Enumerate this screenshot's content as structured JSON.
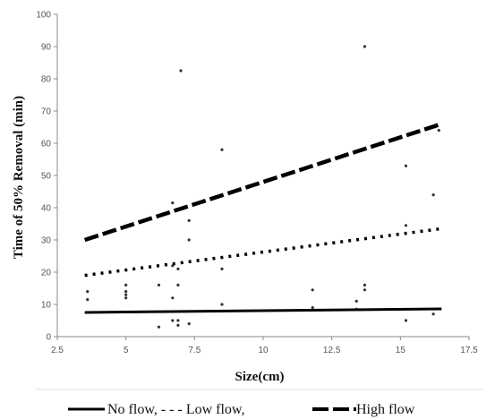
{
  "chart_data": {
    "type": "scatter",
    "xlabel": "Size(cm)",
    "ylabel": "Time of 50% Removal (min)",
    "xlim": [
      2.5,
      17.5
    ],
    "ylim": [
      0,
      100
    ],
    "xticks": [
      "2.5",
      "5",
      "7.5",
      "10",
      "12.5",
      "15",
      "17.5"
    ],
    "yticks": [
      "0",
      "10",
      "20",
      "30",
      "40",
      "50",
      "60",
      "70",
      "80",
      "90",
      "100"
    ],
    "grid": false,
    "legend_position": "bottom",
    "points": [
      {
        "x": 3.6,
        "y": 14
      },
      {
        "x": 3.6,
        "y": 11.5
      },
      {
        "x": 5.0,
        "y": 16
      },
      {
        "x": 5.0,
        "y": 14
      },
      {
        "x": 5.0,
        "y": 13
      },
      {
        "x": 5.0,
        "y": 12
      },
      {
        "x": 6.2,
        "y": 16
      },
      {
        "x": 6.2,
        "y": 3
      },
      {
        "x": 6.7,
        "y": 41.5
      },
      {
        "x": 6.7,
        "y": 22
      },
      {
        "x": 6.7,
        "y": 12
      },
      {
        "x": 6.7,
        "y": 5
      },
      {
        "x": 6.9,
        "y": 16
      },
      {
        "x": 6.9,
        "y": 21
      },
      {
        "x": 6.9,
        "y": 5
      },
      {
        "x": 6.9,
        "y": 3.5
      },
      {
        "x": 7.0,
        "y": 82.5
      },
      {
        "x": 7.3,
        "y": 36
      },
      {
        "x": 7.3,
        "y": 30
      },
      {
        "x": 7.3,
        "y": 4
      },
      {
        "x": 8.5,
        "y": 58
      },
      {
        "x": 8.5,
        "y": 21
      },
      {
        "x": 8.5,
        "y": 10
      },
      {
        "x": 11.8,
        "y": 14.5
      },
      {
        "x": 11.8,
        "y": 9
      },
      {
        "x": 13.4,
        "y": 11
      },
      {
        "x": 13.4,
        "y": 8.5
      },
      {
        "x": 13.7,
        "y": 90
      },
      {
        "x": 13.7,
        "y": 16
      },
      {
        "x": 13.7,
        "y": 14.5
      },
      {
        "x": 15.2,
        "y": 53
      },
      {
        "x": 15.2,
        "y": 34.5
      },
      {
        "x": 15.2,
        "y": 5
      },
      {
        "x": 16.2,
        "y": 44
      },
      {
        "x": 16.2,
        "y": 7
      },
      {
        "x": 16.4,
        "y": 64
      }
    ],
    "series": [
      {
        "style": "solid",
        "color": "#000000",
        "x": [
          3.5,
          16.5
        ],
        "y": [
          7.5,
          8.6
        ]
      },
      {
        "style": "dotted",
        "color": "#000000",
        "x": [
          3.5,
          16.5
        ],
        "y": [
          19,
          33.5
        ]
      },
      {
        "style": "dashed",
        "color": "#000000",
        "x": [
          3.5,
          16.5
        ],
        "y": [
          30,
          66
        ]
      }
    ],
    "legend": [
      {
        "style": "solid",
        "text": "No flow, - - - Low flow,"
      },
      {
        "style": "dashed",
        "text": "High flow"
      }
    ]
  }
}
